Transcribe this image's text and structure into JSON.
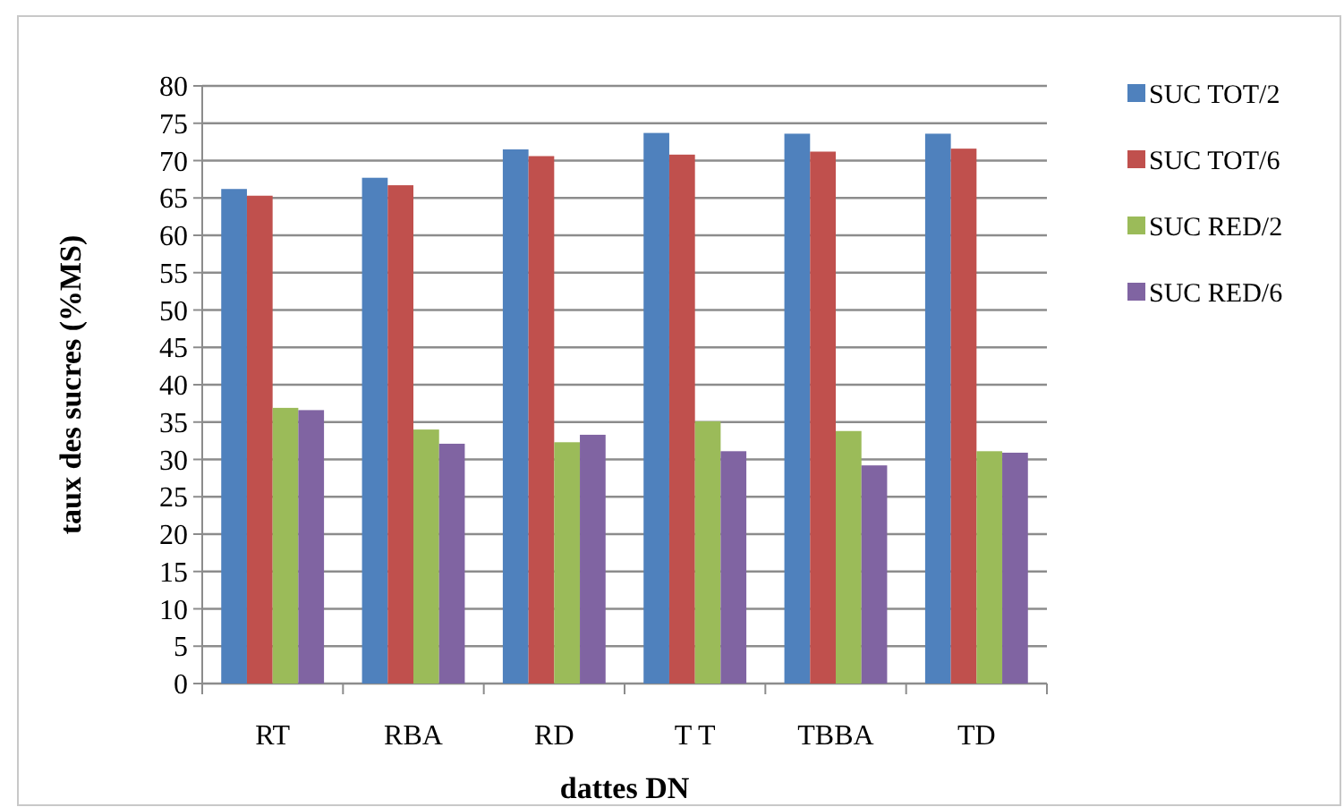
{
  "chart_data": {
    "type": "bar",
    "xlabel": "dattes DN",
    "ylabel": "taux des sucres (%MS)",
    "categories": [
      "RT",
      "RBA",
      "RD",
      "T T",
      "TBBA",
      "TD"
    ],
    "series": [
      {
        "name": "SUC TOT/2",
        "color": "#4f81bd",
        "values": [
          66.2,
          67.7,
          71.5,
          73.7,
          73.6,
          73.6
        ]
      },
      {
        "name": "SUC TOT/6",
        "color": "#c0504d",
        "values": [
          65.3,
          66.7,
          70.6,
          70.8,
          71.2,
          71.6
        ]
      },
      {
        "name": "SUC RED/2",
        "color": "#9bbb59",
        "values": [
          36.9,
          34.0,
          32.3,
          35.1,
          33.8,
          31.1
        ]
      },
      {
        "name": "SUC RED/6",
        "color": "#8064a2",
        "values": [
          36.6,
          32.1,
          33.3,
          31.1,
          29.2,
          30.9
        ]
      }
    ],
    "ylim": [
      0,
      80
    ],
    "yticks": [
      0,
      5,
      10,
      15,
      20,
      25,
      30,
      35,
      40,
      45,
      50,
      55,
      60,
      65,
      70,
      75,
      80
    ],
    "grid": "y",
    "legend": "right"
  }
}
